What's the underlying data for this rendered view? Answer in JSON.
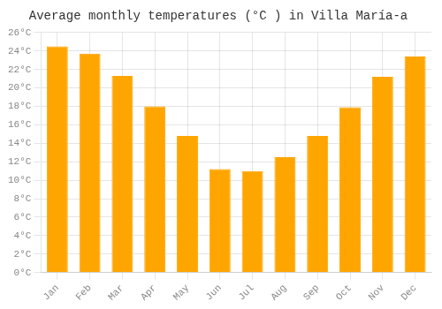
{
  "chart_data": {
    "type": "bar",
    "title": "Average monthly temperatures (°C ) in Villa María-a",
    "categories": [
      "Jan",
      "Feb",
      "Mar",
      "Apr",
      "May",
      "Jun",
      "Jul",
      "Aug",
      "Sep",
      "Oct",
      "Nov",
      "Dec"
    ],
    "values": [
      24.5,
      23.7,
      21.3,
      18.0,
      14.8,
      11.2,
      11.0,
      12.5,
      14.8,
      17.9,
      21.2,
      23.4
    ],
    "color": "#FFA500",
    "ylim": [
      0,
      26
    ],
    "yticks": [
      {
        "value": 0,
        "label": "0°C"
      },
      {
        "value": 2,
        "label": "2°C"
      },
      {
        "value": 4,
        "label": "4°C"
      },
      {
        "value": 6,
        "label": "6°C"
      },
      {
        "value": 8,
        "label": "8°C"
      },
      {
        "value": 10,
        "label": "10°C"
      },
      {
        "value": 12,
        "label": "12°C"
      },
      {
        "value": 14,
        "label": "14°C"
      },
      {
        "value": 16,
        "label": "16°C"
      },
      {
        "value": 18,
        "label": "18°C"
      },
      {
        "value": 20,
        "label": "20°C"
      },
      {
        "value": 22,
        "label": "22°C"
      },
      {
        "value": 24,
        "label": "24°C"
      },
      {
        "value": 26,
        "label": "26°C"
      }
    ],
    "grid": true
  }
}
